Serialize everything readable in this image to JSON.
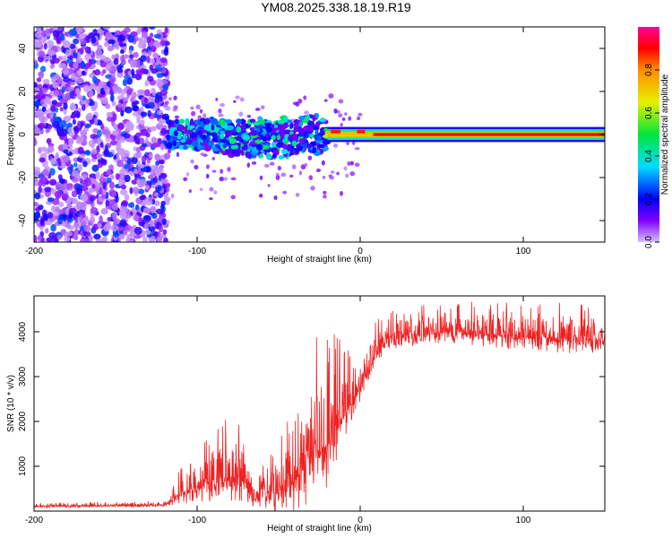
{
  "title": "YM08.2025.338.18.19.R19",
  "chart_data": [
    {
      "type": "heatmap",
      "xlabel": "Height of straight line (km)",
      "ylabel": "Frequency (Hz)",
      "xlim": [
        -200,
        150
      ],
      "ylim": [
        -50,
        50
      ],
      "xticks": [
        -200,
        -100,
        0,
        100
      ],
      "yticks": [
        -40,
        -20,
        0,
        20,
        40
      ],
      "colorbar": {
        "label": "Normalized spectral amplitude",
        "range": [
          0,
          1
        ],
        "ticks": [
          "0.0",
          "0.2",
          "0.4",
          "0.6",
          "0.8"
        ]
      },
      "regions": [
        {
          "x_range": [
            -200,
            -118
          ],
          "freq_spread": 50,
          "amplitude": 0.15,
          "description_units": "km"
        },
        {
          "x_range": [
            -118,
            -20
          ],
          "freq_spread": 10,
          "amplitude": 0.3
        },
        {
          "x_range": [
            -20,
            150
          ],
          "freq_center": 0,
          "amplitude": 1.0
        }
      ]
    },
    {
      "type": "line",
      "xlabel": "Height of straight line (km)",
      "ylabel": "SNR (10 * v/v)",
      "xlim": [
        -200,
        150
      ],
      "ylim": [
        0,
        4800
      ],
      "xticks": [
        -200,
        -100,
        0,
        100
      ],
      "yticks": [
        1000,
        2000,
        3000,
        4000
      ],
      "color": "#ee2222",
      "envelope": [
        {
          "x": -200,
          "base": 100,
          "spread": 80
        },
        {
          "x": -120,
          "base": 130,
          "spread": 100
        },
        {
          "x": -110,
          "base": 400,
          "spread": 600
        },
        {
          "x": -90,
          "base": 700,
          "spread": 1200
        },
        {
          "x": -75,
          "base": 800,
          "spread": 1400
        },
        {
          "x": -65,
          "base": 250,
          "spread": 400
        },
        {
          "x": -45,
          "base": 500,
          "spread": 1500
        },
        {
          "x": -28,
          "base": 1200,
          "spread": 2800
        },
        {
          "x": -15,
          "base": 1800,
          "spread": 2400
        },
        {
          "x": 0,
          "base": 2800,
          "spread": 900
        },
        {
          "x": 15,
          "base": 3800,
          "spread": 700
        },
        {
          "x": 50,
          "base": 4000,
          "spread": 650
        },
        {
          "x": 100,
          "base": 3900,
          "spread": 800
        },
        {
          "x": 150,
          "base": 3800,
          "spread": 900
        }
      ]
    }
  ]
}
